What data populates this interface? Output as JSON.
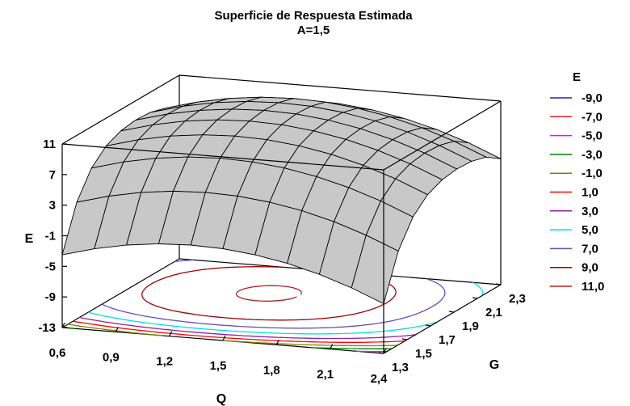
{
  "chart_data": {
    "type": "surface",
    "title": "Superficie de Respuesta Estimada",
    "subtitle": "A=1,5",
    "xlabel": "Q",
    "ylabel": "G",
    "zlabel": "E",
    "x_ticks": [
      "0,6",
      "0,9",
      "1,2",
      "1,5",
      "1,8",
      "2,1",
      "2,4"
    ],
    "y_ticks": [
      "1,3",
      "1,5",
      "1,7",
      "1,9",
      "2,1",
      "2,3"
    ],
    "z_ticks": [
      "-13",
      "-9",
      "-5",
      "-1",
      "3",
      "7",
      "11"
    ],
    "xlim": [
      0.6,
      2.4
    ],
    "ylim": [
      1.3,
      2.3
    ],
    "zlim": [
      -13,
      11
    ],
    "surface_color": "#c8c8c8",
    "legend": {
      "title": "E",
      "placement": "right",
      "items": [
        {
          "label": "-9,0",
          "color": "#2020c0"
        },
        {
          "label": "-7,0",
          "color": "#e02020"
        },
        {
          "label": "-5,0",
          "color": "#ff00ff"
        },
        {
          "label": "-3,0",
          "color": "#008000"
        },
        {
          "label": "-1,0",
          "color": "#808000"
        },
        {
          "label": "1,0",
          "color": "#ff0000"
        },
        {
          "label": "3,0",
          "color": "#9020a0"
        },
        {
          "label": "5,0",
          "color": "#00e0e0"
        },
        {
          "label": "7,0",
          "color": "#6050c0"
        },
        {
          "label": "9,0",
          "color": "#a00000"
        },
        {
          "label": "11,0",
          "color": "#b02020"
        }
      ]
    }
  }
}
